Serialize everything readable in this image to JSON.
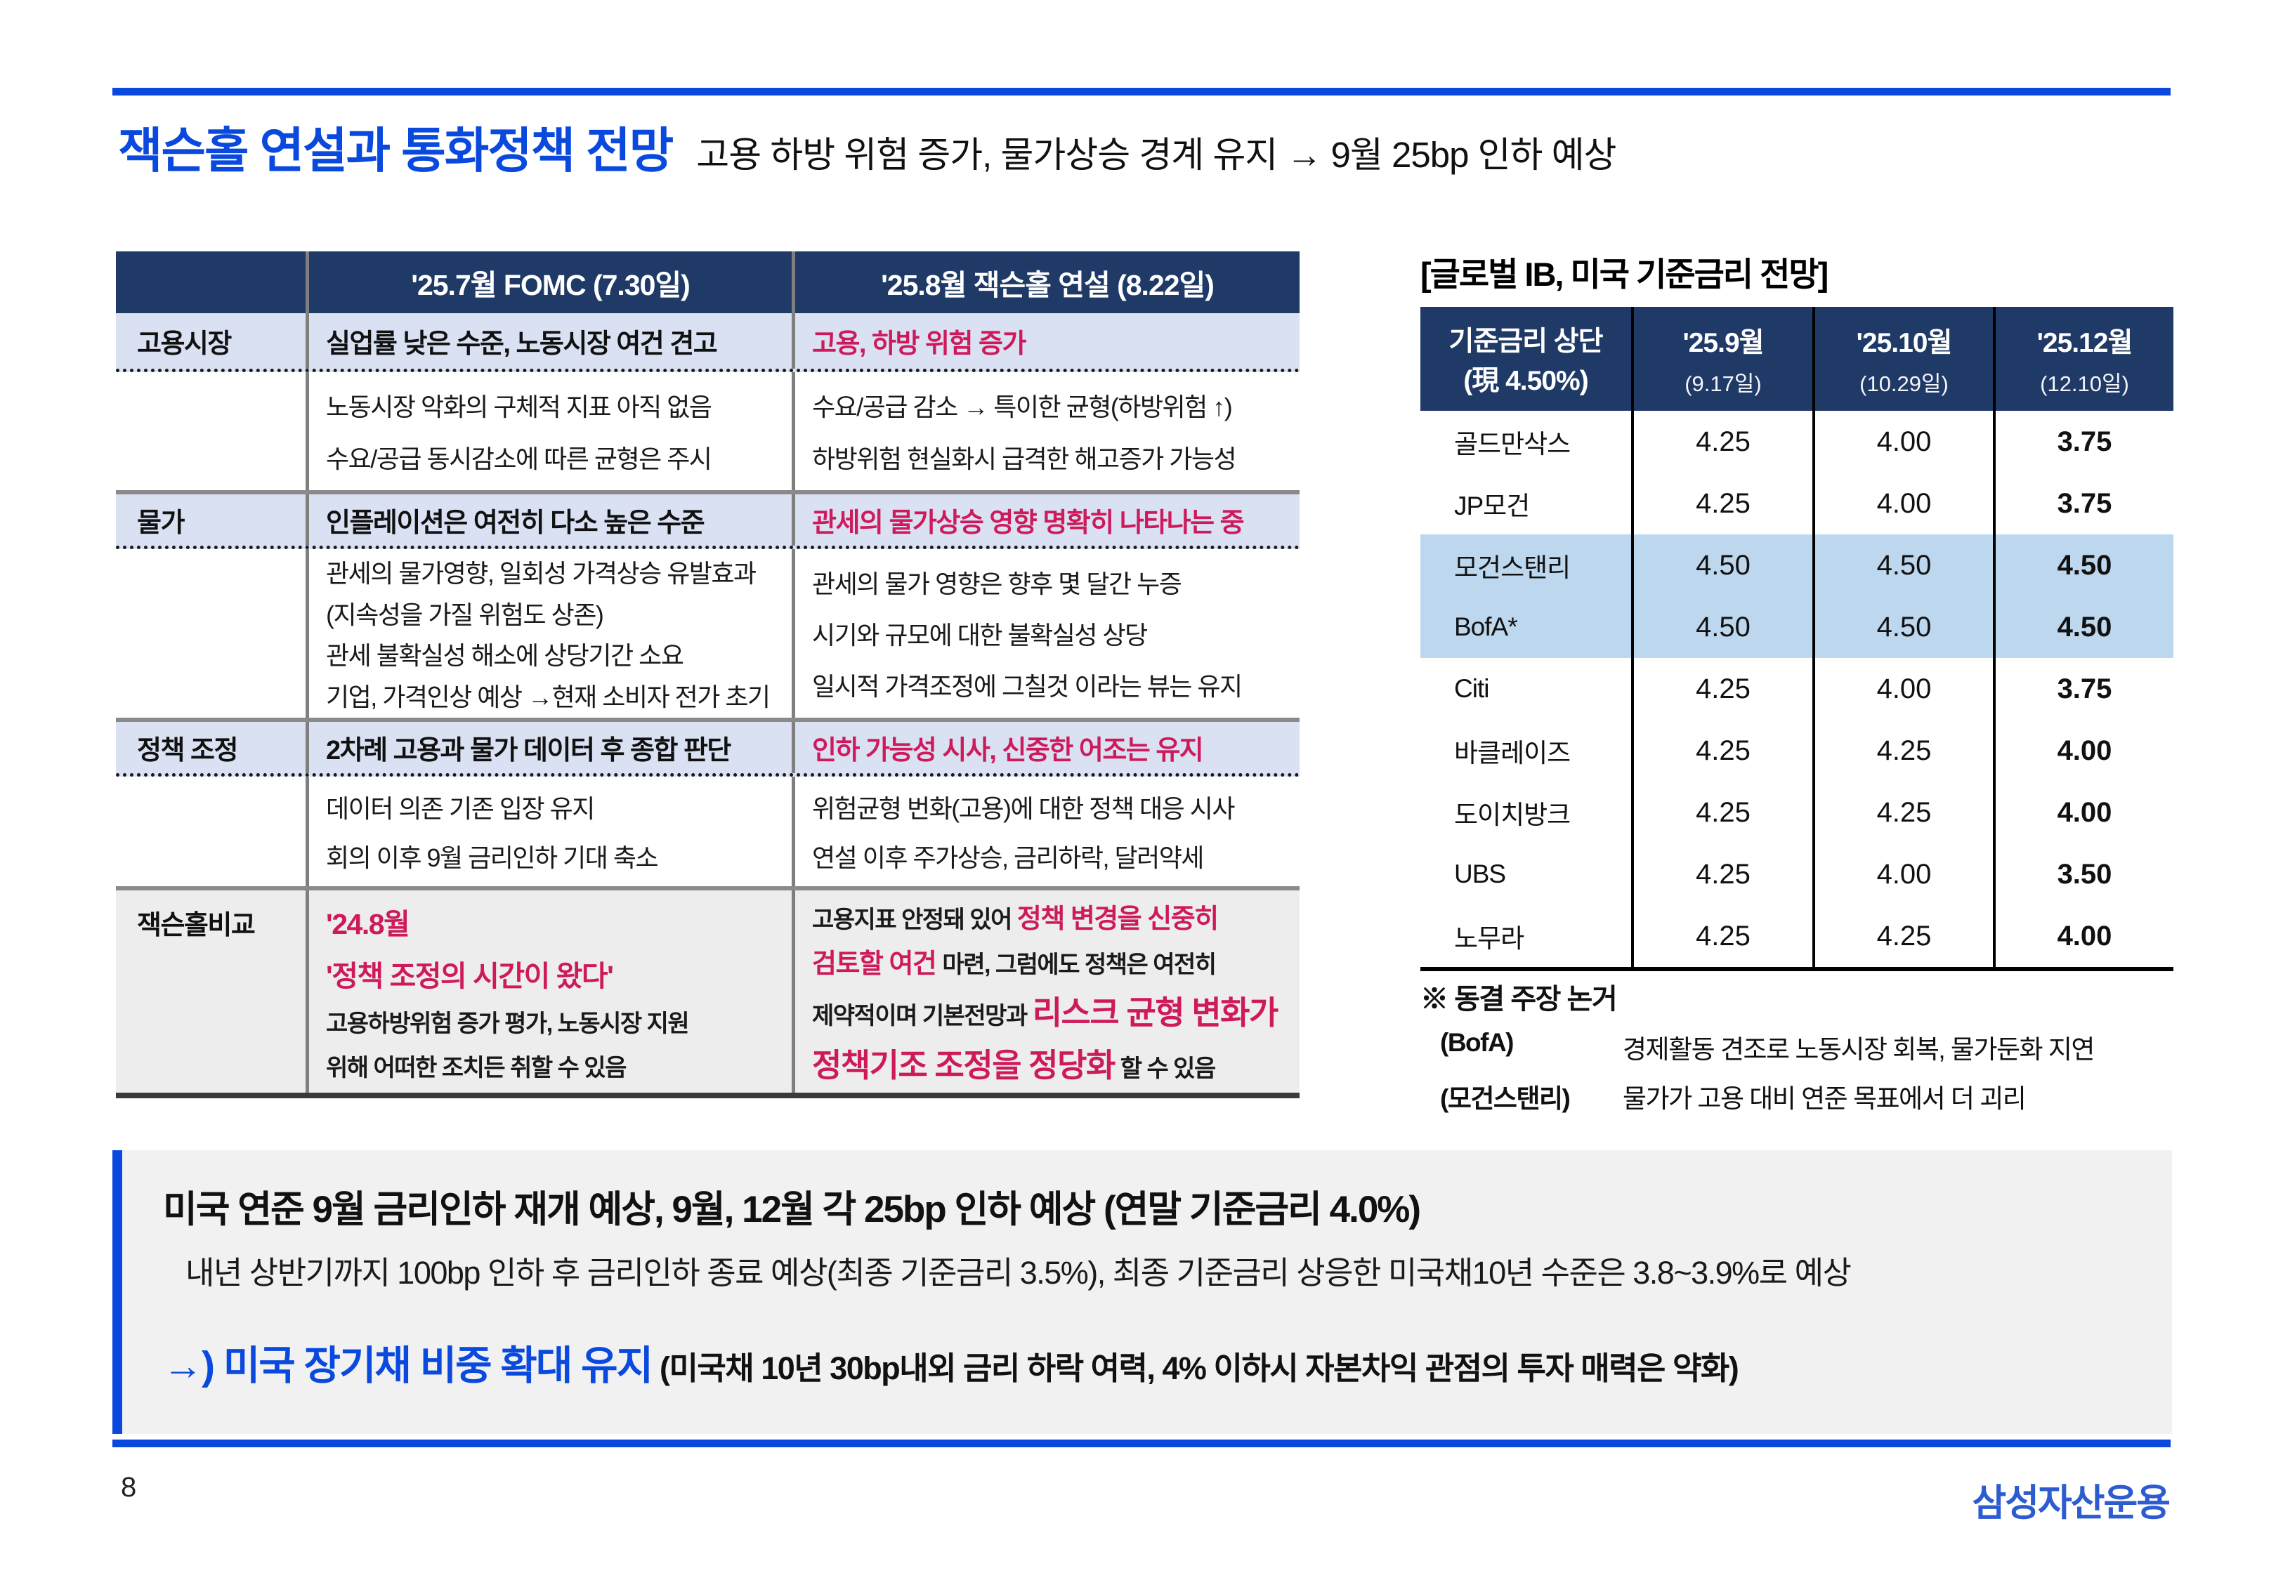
{
  "colors": {
    "accent_blue": "#0a49dd",
    "navy": "#203a67",
    "pink": "#ce1a5b",
    "section_bg": "#d9e1f2",
    "highlight_bg": "#bdd7ee",
    "comparison_bg": "#ededed",
    "summary_bg": "#f1f1f2",
    "logo_blue": "#2d5bd0"
  },
  "header": {
    "title": "잭슨홀 연설과 통화정책 전망",
    "subtitle": "고용 하방 위험 증가, 물가상승 경계 유지 → 9월 25bp 인하 예상"
  },
  "left_table": {
    "col_headers": [
      "'25.7월 FOMC (7.30일)",
      "'25.8월 잭슨홀 연설 (8.22일)"
    ],
    "sections": [
      {
        "label": "고용시장",
        "fomc_head": "실업률 낮은 수준, 노동시장 여건 견고",
        "jh_head": "고용, 하방 위험 증가",
        "fomc_lines": [
          "노동시장 악화의 구체적 지표 아직 없음",
          "수요/공급 동시감소에 따른 균형은 주시"
        ],
        "jh_lines": [
          "수요/공급 감소 → 특이한 균형(하방위험 ↑)",
          "하방위험 현실화시 급격한 해고증가 가능성"
        ]
      },
      {
        "label": "물가",
        "fomc_head": "인플레이션은 여전히 다소 높은 수준",
        "jh_head": "관세의 물가상승 영향 명확히 나타나는 중",
        "fomc_lines": [
          "관세의 물가영향, 일회성 가격상승 유발효과",
          "(지속성을 가질 위험도 상존)",
          "관세 불확실성 해소에 상당기간 소요",
          "기업, 가격인상 예상 →현재 소비자 전가 초기"
        ],
        "jh_lines": [
          "관세의 물가 영향은 향후 몇 달간 누증",
          "시기와 규모에 대한 불확실성 상당",
          "일시적 가격조정에 그칠것 이라는 뷰는 유지"
        ]
      },
      {
        "label": "정책 조정",
        "fomc_head": "2차례 고용과 물가 데이터 후 종합 판단",
        "jh_head": "인하 가능성 시사, 신중한 어조는 유지",
        "fomc_lines": [
          "데이터 의존 기존 입장 유지",
          "회의 이후 9월 금리인하 기대 축소"
        ],
        "jh_lines": [
          "위험균형 번화(고용)에 대한 정책 대응 시사",
          "연설 이후 주가상승, 금리하락, 달러약세"
        ]
      }
    ],
    "comparison": {
      "label": "잭슨홀비교",
      "left": {
        "line1": "'24.8월",
        "line2": "'정책 조정의 시간이 왔다'",
        "line3": "고용하방위험 증가 평가, 노동시장 지원",
        "line4": "위해 어떠한 조치든 취할 수 있음"
      },
      "right": {
        "l1_black": "고용지표 안정돼 있어 ",
        "l1_pink": "정책 변경을 신중히",
        "l2_pink": "검토할 여건 ",
        "l2_black": "마련, 그럼에도 정책은 여전히",
        "l3_black": "제약적이며 기본전망과 ",
        "l3_pink": "리스크 균형 변화가",
        "l4_pink": "정책기조 조정을 정당화",
        "l4_black": " 할 수 있음"
      }
    }
  },
  "rate_table": {
    "title": "[글로벌 IB, 미국 기준금리 전망]",
    "header": {
      "label_line1": "기준금리 상단",
      "label_line2": "(現 4.50%)",
      "months": [
        {
          "m": "'25.9월",
          "d": "(9.17일)"
        },
        {
          "m": "'25.10월",
          "d": "(10.29일)"
        },
        {
          "m": "'25.12월",
          "d": "(12.10일)"
        }
      ]
    },
    "rows": [
      {
        "bank": "골드만삭스",
        "sep": "4.25",
        "oct": "4.00",
        "dec": "3.75"
      },
      {
        "bank": "JP모건",
        "sep": "4.25",
        "oct": "4.00",
        "dec": "3.75"
      },
      {
        "bank": "모건스탠리",
        "sep": "4.50",
        "oct": "4.50",
        "dec": "4.50"
      },
      {
        "bank": "BofA*",
        "sep": "4.50",
        "oct": "4.50",
        "dec": "4.50"
      },
      {
        "bank": "Citi",
        "sep": "4.25",
        "oct": "4.00",
        "dec": "3.75"
      },
      {
        "bank": "바클레이즈",
        "sep": "4.25",
        "oct": "4.25",
        "dec": "4.00"
      },
      {
        "bank": "도이치방크",
        "sep": "4.25",
        "oct": "4.25",
        "dec": "4.00"
      },
      {
        "bank": "UBS",
        "sep": "4.25",
        "oct": "4.00",
        "dec": "3.50"
      },
      {
        "bank": "노무라",
        "sep": "4.25",
        "oct": "4.25",
        "dec": "4.00"
      }
    ],
    "footnote": {
      "title": "※ 동결 주장 논거",
      "items": [
        {
          "who": "(BofA)",
          "text": "경제활동 견조로 노동시장 회복, 물가둔화 지연"
        },
        {
          "who": "(모건스탠리)",
          "text": "물가가 고용 대비 연준 목표에서 더 괴리"
        }
      ]
    }
  },
  "summary": {
    "line1": "미국 연준 9월 금리인하 재개 예상, 9월, 12월 각 25bp 인하 예상 (연말 기준금리 4.0%)",
    "line2": "내년 상반기까지 100bp 인하 후 금리인하 종료 예상(최종 기준금리 3.5%), 최종 기준금리 상응한 미국채10년 수준은 3.8~3.9%로 예상",
    "line3_blue": "→) 미국 장기채 비중 확대 유지",
    "line3_black": " (미국채 10년 30bp내외 금리 하락 여력,  4% 이하시 자본차익 관점의 투자 매력은 약화)"
  },
  "footer": {
    "page": "8",
    "logo": "삼성자산운용"
  }
}
